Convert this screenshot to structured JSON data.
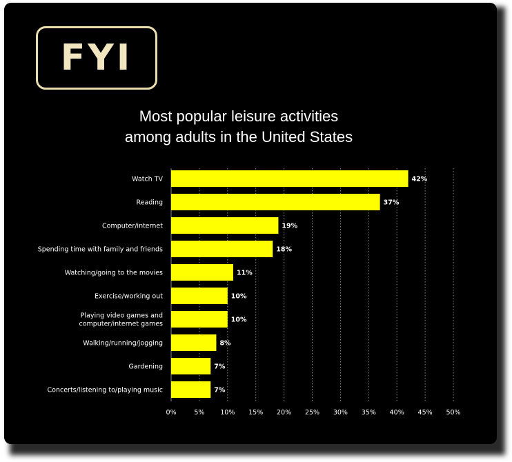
{
  "logo": {
    "text": "FYI",
    "color": "#f1e6bf"
  },
  "chart_data": {
    "type": "bar",
    "orientation": "horizontal",
    "title_lines": [
      "Most popular leisure activities",
      "among adults in the United States"
    ],
    "categories": [
      [
        "Watch TV"
      ],
      [
        "Reading"
      ],
      [
        "Computer/internet"
      ],
      [
        "Spending time with family and friends"
      ],
      [
        "Watching/going to the movies"
      ],
      [
        "Exercise/working out"
      ],
      [
        "Playing video games and",
        "computer/internet games"
      ],
      [
        "Walking/running/jogging"
      ],
      [
        "Gardening"
      ],
      [
        "Concerts/listening to/playing music"
      ]
    ],
    "values": [
      42,
      37,
      19,
      18,
      11,
      10,
      10,
      8,
      7,
      7
    ],
    "value_labels": [
      "42%",
      "37%",
      "19%",
      "18%",
      "11%",
      "10%",
      "10%",
      "8%",
      "7%",
      "7%"
    ],
    "xlim": [
      0,
      50
    ],
    "xticks": [
      "0%",
      "5%",
      "10%",
      "15%",
      "20%",
      "25%",
      "30%",
      "35%",
      "40%",
      "45%",
      "50%"
    ],
    "grid": "vertical dotted",
    "bar_color": "#ffff00",
    "background": "#000000",
    "text_color": "#ffffff"
  }
}
